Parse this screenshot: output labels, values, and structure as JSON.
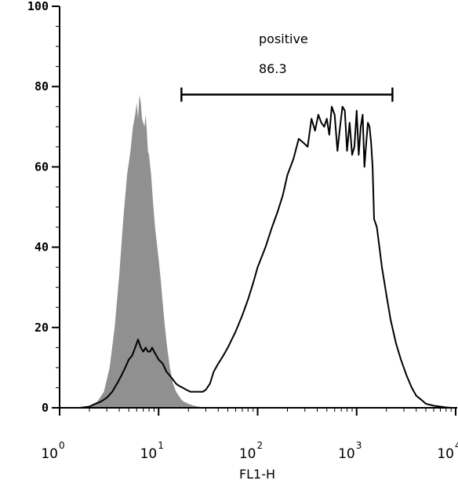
{
  "chart_data": {
    "type": "area",
    "xlabel": "FL1-H",
    "ylabel": "",
    "xscale": "log",
    "xlim": [
      1,
      10000
    ],
    "ylim": [
      0,
      100
    ],
    "x_ticks": [
      {
        "base": "10",
        "exp": "0",
        "value": 1
      },
      {
        "base": "10",
        "exp": "1",
        "value": 10
      },
      {
        "base": "10",
        "exp": "2",
        "value": 100
      },
      {
        "base": "10",
        "exp": "3",
        "value": 1000
      },
      {
        "base": "10",
        "exp": "4",
        "value": 10000
      }
    ],
    "y_ticks": [
      "0",
      "20",
      "40",
      "60",
      "80",
      "100"
    ],
    "series": [
      {
        "style": "filled-gray",
        "color": "#909090",
        "x": [
          1.6,
          2.0,
          2.4,
          2.8,
          3.2,
          3.6,
          4.0,
          4.4,
          4.8,
          5.2,
          5.5,
          5.8,
          6.0,
          6.2,
          6.4,
          6.6,
          6.8,
          7.0,
          7.2,
          7.4,
          7.6,
          7.8,
          8.0,
          8.4,
          8.8,
          9.2,
          9.6,
          10.0,
          10.5,
          11.0,
          11.6,
          12.2,
          13.0,
          14.0,
          15.0,
          16.0,
          17.0,
          18.0,
          20.0,
          22.0,
          25.0,
          30.0
        ],
        "y": [
          0,
          0.5,
          1.5,
          4,
          10,
          20,
          33,
          47,
          58,
          64,
          70,
          73,
          76,
          72,
          78,
          76,
          72,
          71,
          70,
          73,
          69,
          64,
          63,
          58,
          51,
          45,
          41,
          37,
          32,
          26,
          20,
          15,
          10,
          6,
          4,
          3,
          2,
          1.5,
          1,
          0.6,
          0.3,
          0
        ]
      },
      {
        "style": "outline-black",
        "color": "#000000",
        "x": [
          1.0,
          1.6,
          2.0,
          2.3,
          2.6,
          3.0,
          3.4,
          3.8,
          4.2,
          4.6,
          5.0,
          5.4,
          5.8,
          6.2,
          6.6,
          7.0,
          7.4,
          7.8,
          8.2,
          8.6,
          9.0,
          9.5,
          10.0,
          11.0,
          12.0,
          13.0,
          14.0,
          15.0,
          16.0,
          17.5,
          19.0,
          21.0,
          23.0,
          25.0,
          28.0,
          30.0,
          33.0,
          36.0,
          40.0,
          45.0,
          50.0,
          60.0,
          70.0,
          80.0,
          90.0,
          100.0,
          120.0,
          140.0,
          160.0,
          180.0,
          200.0,
          230.0,
          260.0,
          290.0,
          320.0,
          350.0,
          380.0,
          410.0,
          440.0,
          470.0,
          500.0,
          530.0,
          560.0,
          600.0,
          640.0,
          680.0,
          720.0,
          760.0,
          800.0,
          850.0,
          900.0,
          950.0,
          1000.0,
          1050.0,
          1100.0,
          1150.0,
          1200.0,
          1250.0,
          1300.0,
          1350.0,
          1400.0,
          1450.0,
          1500.0,
          1600.0,
          1700.0,
          1800.0,
          2000.0,
          2200.0,
          2500.0,
          2800.0,
          3200.0,
          3600.0,
          4000.0,
          4500.0,
          5000.0,
          6000.0,
          7000.0,
          8000.0,
          9000.0,
          10000.0
        ],
        "y": [
          0,
          0,
          0.3,
          1,
          1.5,
          2.5,
          4,
          6,
          8,
          10,
          12,
          13,
          15,
          17,
          15,
          14,
          15,
          14,
          14,
          15,
          14,
          13,
          12,
          11,
          9,
          8,
          7,
          6,
          5.5,
          5,
          4.5,
          4,
          4,
          4,
          4,
          4.5,
          6,
          9,
          11,
          13,
          15,
          19,
          23,
          27,
          31,
          35,
          40,
          45,
          49,
          53,
          58,
          62,
          67,
          66,
          65,
          72,
          69,
          73,
          71,
          70,
          72,
          68,
          75,
          73,
          64,
          70,
          75,
          74,
          64,
          71,
          63,
          65,
          74,
          63,
          70,
          73,
          60,
          66,
          71,
          70,
          66,
          60,
          47,
          45,
          40,
          35,
          28,
          22,
          16,
          12,
          8,
          5,
          3,
          2,
          1,
          0.5,
          0.3,
          0.1,
          0,
          0
        ]
      }
    ],
    "gates": [
      {
        "name": "positive",
        "value": "86.3",
        "x_range": [
          17,
          2300
        ],
        "y": 78
      }
    ]
  }
}
